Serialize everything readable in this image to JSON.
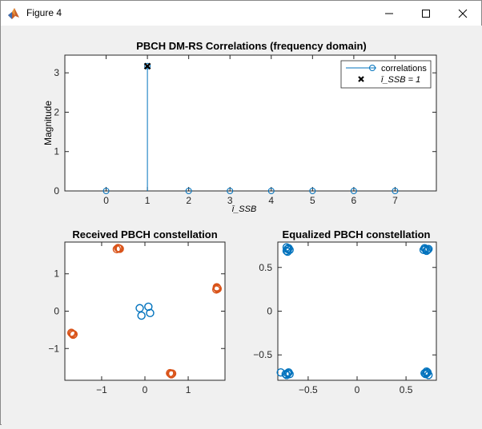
{
  "window": {
    "title": "Figure 4",
    "icon": "matlab-icon",
    "controls": [
      "minimize-icon",
      "maximize-icon",
      "close-icon"
    ]
  },
  "chart_data": [
    {
      "type": "stem",
      "title": "PBCH DM-RS Correlations (frequency domain)",
      "xlabel": "ī_SSB",
      "ylabel": "Magnitude",
      "xlim": [
        -1,
        8
      ],
      "ylim": [
        0,
        3.45
      ],
      "xticks": [
        0,
        1,
        2,
        3,
        4,
        5,
        6,
        7
      ],
      "yticks": [
        0,
        1,
        2,
        3
      ],
      "x": [
        0,
        1,
        2,
        3,
        4,
        5,
        6,
        7
      ],
      "values": [
        0.0,
        3.17,
        0.0,
        0.0,
        0.0,
        0.0,
        0.0,
        0.0
      ],
      "series": [
        {
          "name": "correlations",
          "marker": "o",
          "color": "#0072bd"
        },
        {
          "name": "ī_SSB = 1",
          "marker": "x",
          "color": "#000000",
          "x": [
            1
          ],
          "y": [
            3.17
          ]
        }
      ],
      "legend_position": "top-right"
    },
    {
      "type": "scatter",
      "title": "Received PBCH constellation",
      "xlim": [
        -1.85,
        1.85
      ],
      "ylim": [
        -1.85,
        1.85
      ],
      "xticks": [
        -1,
        0,
        1
      ],
      "yticks": [
        -1,
        0,
        1
      ],
      "series": [
        {
          "name": "",
          "color": "#0072bd",
          "points": [
            [
              -0.12,
              0.08
            ],
            [
              0.08,
              0.12
            ],
            [
              -0.08,
              -0.12
            ],
            [
              0.12,
              -0.05
            ]
          ]
        },
        {
          "name": "",
          "color": "#d95319",
          "points": [
            [
              -0.6,
              1.68
            ],
            [
              -0.65,
              1.66
            ],
            [
              -0.58,
              1.67
            ],
            [
              -0.62,
              1.69
            ],
            [
              1.67,
              0.62
            ],
            [
              1.65,
              0.58
            ],
            [
              1.68,
              0.6
            ],
            [
              1.66,
              0.64
            ],
            [
              0.6,
              -1.68
            ],
            [
              0.58,
              -1.66
            ],
            [
              0.63,
              -1.67
            ],
            [
              0.61,
              -1.69
            ],
            [
              -1.68,
              -0.6
            ],
            [
              -1.66,
              -0.63
            ],
            [
              -1.7,
              -0.58
            ],
            [
              -1.65,
              -0.62
            ]
          ]
        }
      ]
    },
    {
      "type": "scatter",
      "title": "Equalized PBCH constellation",
      "xlim": [
        -0.81,
        0.81
      ],
      "ylim": [
        -0.79,
        0.79
      ],
      "xticks": [
        -0.5,
        0,
        0.5
      ],
      "yticks": [
        -0.5,
        0,
        0.5
      ],
      "series": [
        {
          "name": "",
          "color": "#0072bd",
          "points": [
            [
              -0.71,
              0.71
            ],
            [
              -0.72,
              0.69
            ],
            [
              -0.7,
              0.72
            ],
            [
              -0.69,
              0.7
            ],
            [
              -0.72,
              0.73
            ],
            [
              -0.71,
              0.68
            ],
            [
              0.7,
              0.71
            ],
            [
              0.72,
              0.7
            ],
            [
              0.69,
              0.72
            ],
            [
              0.71,
              0.69
            ],
            [
              0.73,
              0.71
            ],
            [
              0.68,
              0.7
            ],
            [
              -0.71,
              -0.71
            ],
            [
              -0.73,
              -0.72
            ],
            [
              -0.7,
              -0.7
            ],
            [
              -0.72,
              -0.73
            ],
            [
              -0.78,
              -0.7
            ],
            [
              -0.69,
              -0.72
            ],
            [
              0.71,
              -0.71
            ],
            [
              0.7,
              -0.72
            ],
            [
              0.72,
              -0.7
            ],
            [
              0.73,
              -0.73
            ],
            [
              0.69,
              -0.71
            ],
            [
              0.71,
              -0.69
            ]
          ]
        }
      ]
    }
  ]
}
